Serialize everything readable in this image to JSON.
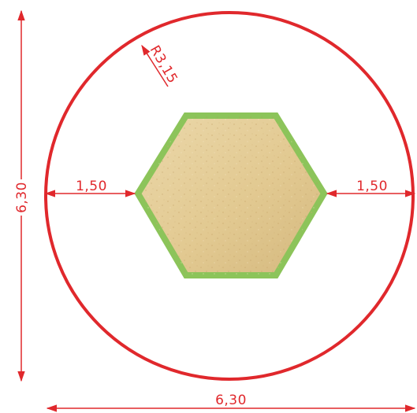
{
  "colors": {
    "dimension": "#e0282c",
    "outer_circle": "#e0282c",
    "hexagon_border": "#8cc45a",
    "hexagon_fill_light": "#e9d5a6",
    "hexagon_fill_dark": "#d2b57a",
    "background": "#ffffff"
  },
  "dimensions": {
    "radius": "R3,15",
    "vertical_diameter": "6,30",
    "horizontal_diameter": "6,30",
    "left_gap": "1,50",
    "right_gap": "1,50"
  }
}
